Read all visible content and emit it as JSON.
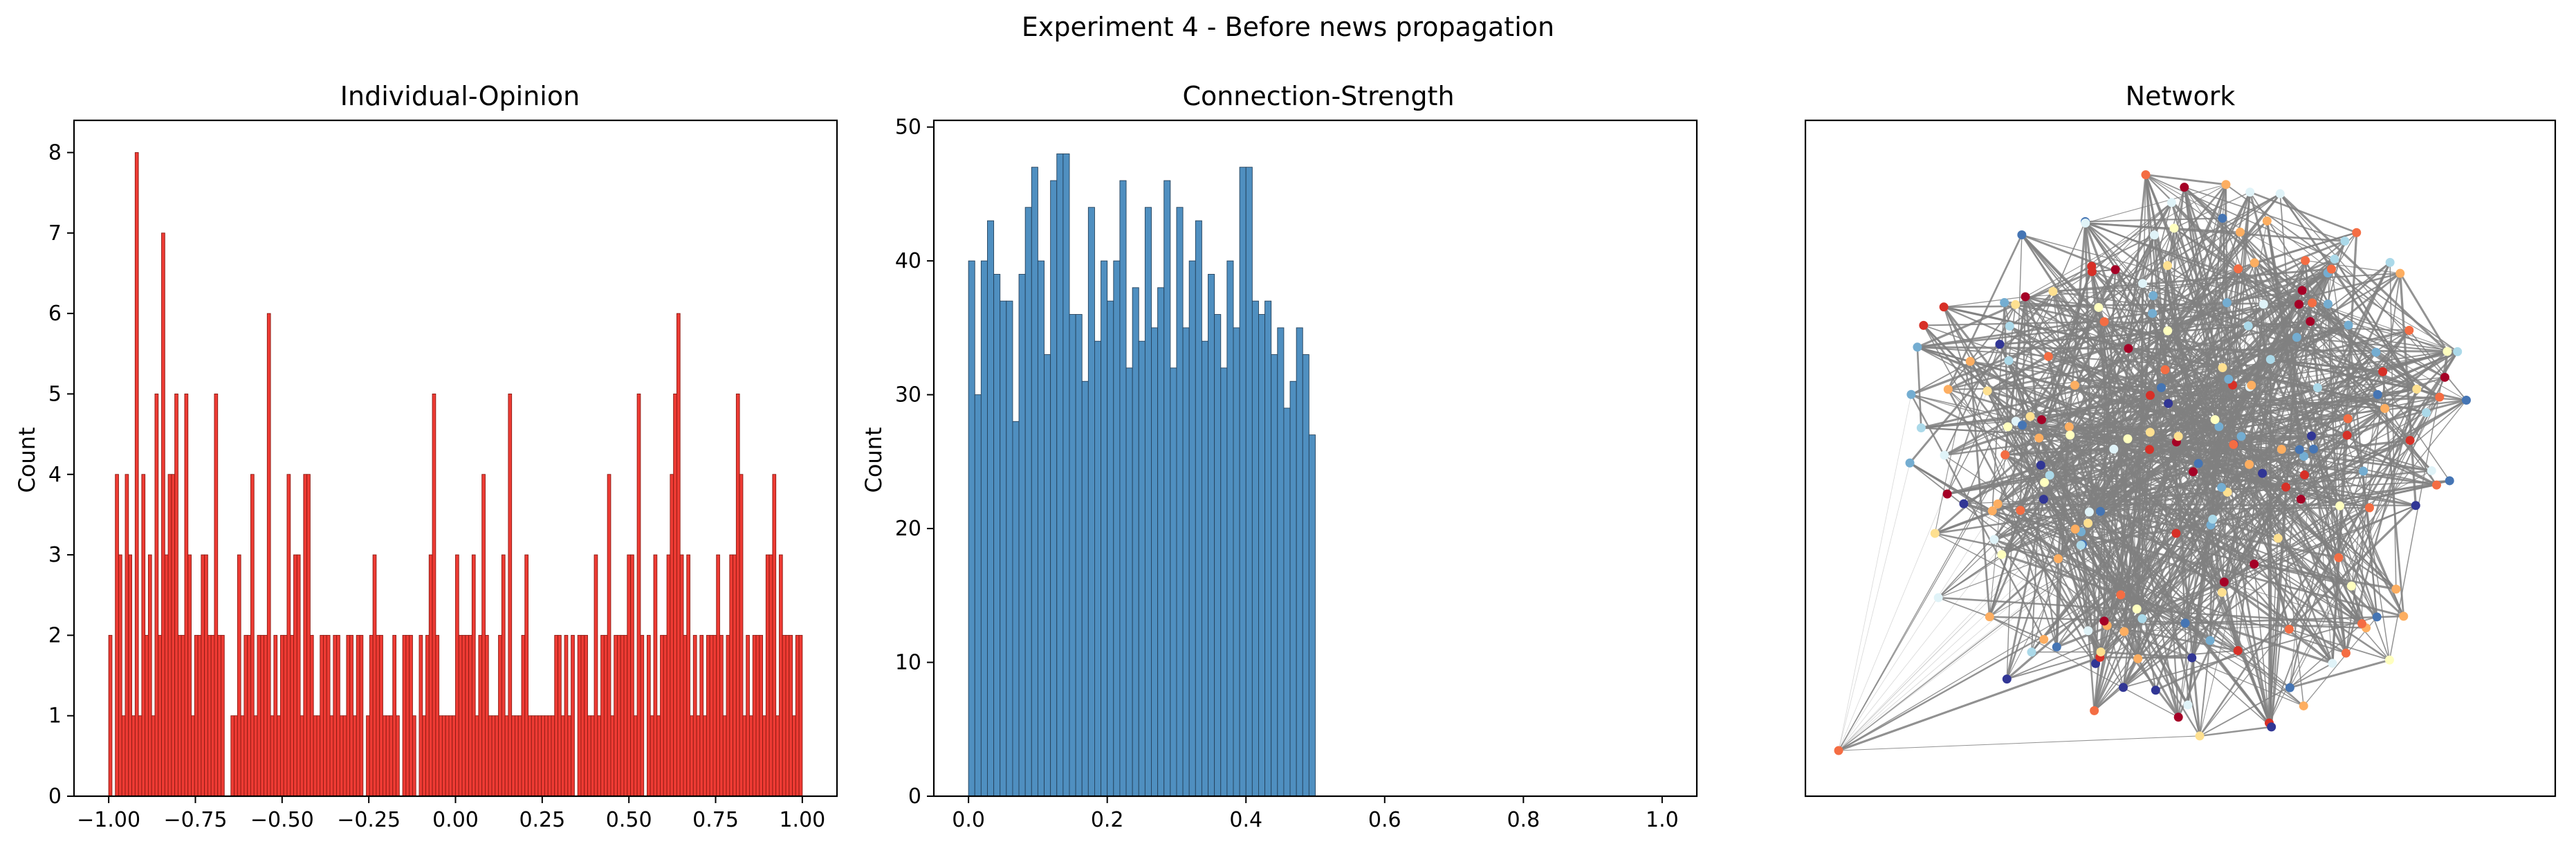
{
  "figure_title": "Experiment 4 - Before news propagation",
  "colors": {
    "opinion_fill": "#ee3b34",
    "opinion_edge": "#8b1a12",
    "strength_fill": "#4f8fc0",
    "strength_edge": "#25415a",
    "network_edge": "#808080",
    "node_palette": [
      "#a50026",
      "#d73027",
      "#f46d43",
      "#fdae61",
      "#fee090",
      "#ffffbf",
      "#e0f3f8",
      "#abd9e9",
      "#74add1",
      "#4575b4",
      "#313695"
    ]
  },
  "chart_data": [
    {
      "type": "bar",
      "title": "Individual-Opinion",
      "xlabel": "",
      "ylabel": "Count",
      "xlim": [
        -1.1,
        1.1
      ],
      "ylim": [
        0,
        8.4
      ],
      "xticks": [
        "−1.00",
        "−0.75",
        "−0.50",
        "−0.25",
        "0.00",
        "0.25",
        "0.50",
        "0.75",
        "1.00"
      ],
      "xtick_values": [
        -1.0,
        -0.75,
        -0.5,
        -0.25,
        0.0,
        0.25,
        0.5,
        0.75,
        1.0
      ],
      "yticks": [
        "0",
        "1",
        "2",
        "3",
        "4",
        "5",
        "6",
        "7",
        "8"
      ],
      "ytick_values": [
        0,
        1,
        2,
        3,
        4,
        5,
        6,
        7,
        8
      ],
      "bin_range": [
        -1.0,
        1.0
      ],
      "values": [
        2,
        0,
        4,
        3,
        1,
        4,
        3,
        1,
        8,
        1,
        4,
        2,
        3,
        1,
        5,
        2,
        7,
        3,
        4,
        4,
        5,
        2,
        2,
        5,
        3,
        1,
        2,
        2,
        3,
        3,
        2,
        2,
        5,
        2,
        2,
        0,
        0,
        1,
        1,
        3,
        1,
        2,
        2,
        4,
        1,
        2,
        2,
        2,
        6,
        1,
        2,
        1,
        2,
        2,
        4,
        2,
        3,
        3,
        1,
        4,
        4,
        2,
        1,
        1,
        2,
        2,
        2,
        1,
        2,
        2,
        1,
        1,
        2,
        2,
        1,
        2,
        2,
        0,
        1,
        2,
        3,
        2,
        2,
        1,
        1,
        1,
        2,
        1,
        0,
        2,
        2,
        2,
        1,
        0,
        2,
        1,
        2,
        3,
        5,
        2,
        1,
        1,
        1,
        1,
        1,
        3,
        2,
        2,
        2,
        2,
        3,
        1,
        2,
        4,
        2,
        1,
        1,
        1,
        2,
        3,
        1,
        5,
        1,
        1,
        1,
        2,
        3,
        1,
        1,
        1,
        1,
        1,
        1,
        1,
        1,
        2,
        2,
        1,
        2,
        1,
        2,
        0,
        2,
        2,
        2,
        1,
        1,
        3,
        1,
        2,
        2,
        4,
        1,
        2,
        2,
        2,
        2,
        3,
        3,
        1,
        5,
        2,
        0,
        2,
        1,
        3,
        1,
        2,
        2,
        3,
        4,
        5,
        6,
        3,
        2,
        3,
        1,
        2,
        1,
        2,
        1,
        2,
        2,
        2,
        3,
        2,
        1,
        2,
        3,
        3,
        5,
        4,
        1,
        2,
        1,
        2,
        2,
        2,
        1,
        3,
        3,
        4,
        1,
        3,
        2,
        2,
        2,
        1,
        2,
        2
      ]
    },
    {
      "type": "bar",
      "title": "Connection-Strength",
      "xlabel": "",
      "ylabel": "Count",
      "xlim": [
        -0.05,
        1.05
      ],
      "ylim": [
        0,
        50.5
      ],
      "xticks": [
        "0.0",
        "0.2",
        "0.4",
        "0.6",
        "0.8",
        "1.0"
      ],
      "xtick_values": [
        0.0,
        0.2,
        0.4,
        0.6,
        0.8,
        1.0
      ],
      "yticks": [
        "0",
        "10",
        "20",
        "30",
        "40",
        "50"
      ],
      "ytick_values": [
        0,
        10,
        20,
        30,
        40,
        50
      ],
      "bin_range": [
        0.0,
        0.5
      ],
      "values": [
        40,
        30,
        40,
        43,
        39,
        37,
        37,
        28,
        39,
        44,
        47,
        40,
        33,
        46,
        48,
        48,
        36,
        36,
        31,
        44,
        34,
        40,
        37,
        40,
        46,
        32,
        38,
        34,
        44,
        35,
        38,
        46,
        32,
        44,
        35,
        40,
        43,
        34,
        39,
        36,
        32,
        40,
        35,
        47,
        47,
        37,
        36,
        37,
        33,
        35,
        29,
        31,
        35,
        33,
        27
      ]
    },
    {
      "type": "network",
      "title": "Network",
      "node_count": 200
    }
  ]
}
